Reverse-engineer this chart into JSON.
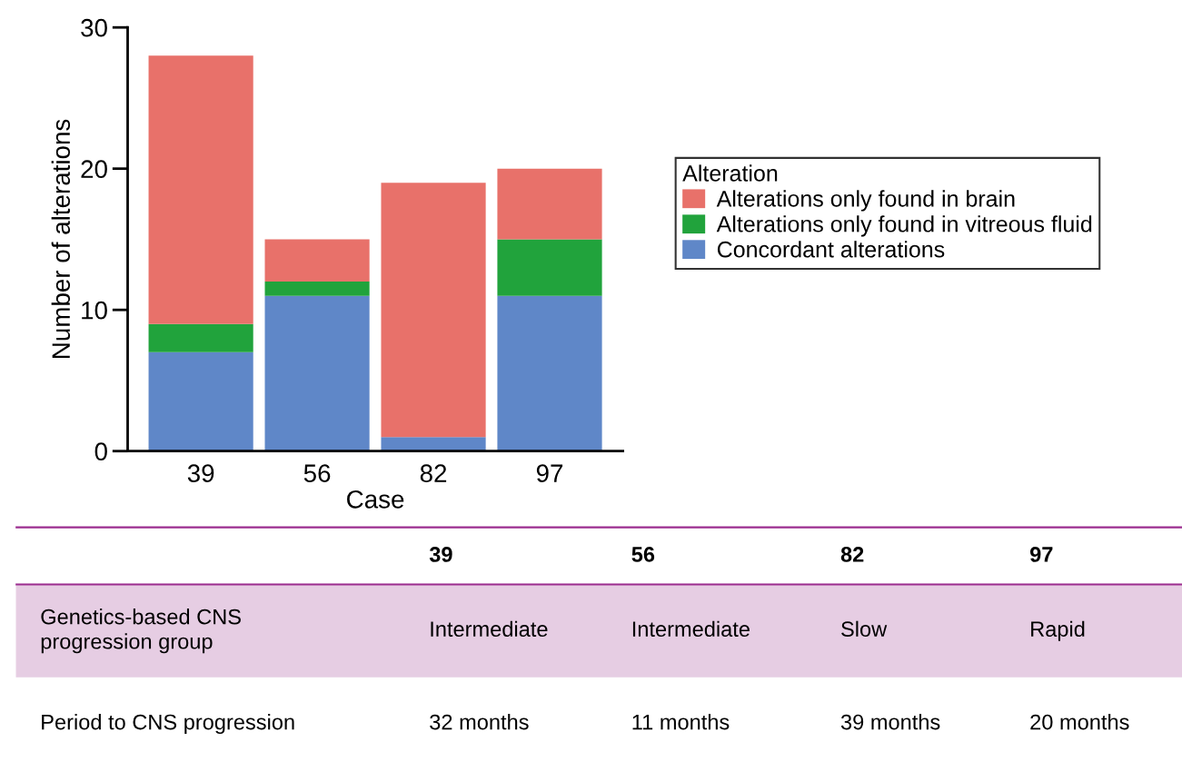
{
  "chart_data": {
    "type": "bar",
    "stacked": true,
    "xlabel": "Case",
    "ylabel": "Number of alterations",
    "legend_title": "Alteration",
    "legend": "right",
    "categories": [
      "39",
      "56",
      "82",
      "97"
    ],
    "series": [
      {
        "name": "Concordant alterations",
        "color": "#5f87c8",
        "values": [
          7,
          11,
          1,
          11
        ]
      },
      {
        "name": "Alterations only found in vitreous fluid",
        "color": "#21a33c",
        "values": [
          2,
          1,
          0,
          4
        ]
      },
      {
        "name": "Alterations only found in brain",
        "color": "#e8716a",
        "values": [
          19,
          3,
          18,
          5
        ]
      }
    ],
    "ylim": [
      0,
      30
    ],
    "yticks": [
      0,
      10,
      20,
      30
    ],
    "grid": false,
    "annotations": [
      "39",
      "56",
      "82",
      "97",
      "Genetics-based CNS\nprogression group",
      "Intermediate",
      "Intermediate",
      "Slow",
      "Rapid",
      "Period to CNS progression",
      "32 months",
      "11 months",
      "39 months",
      "20 months"
    ]
  }
}
